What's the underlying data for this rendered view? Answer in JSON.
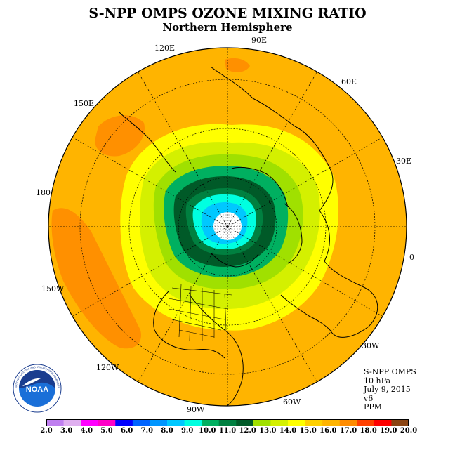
{
  "header": {
    "title": "S-NPP OMPS OZONE MIXING RATIO",
    "subtitle": "Northern Hemisphere"
  },
  "map": {
    "projection": "north-polar-stereographic",
    "longitude_labels": [
      "90E",
      "60E",
      "30E",
      "0",
      "30W",
      "60W",
      "90W",
      "120W",
      "150W",
      "180",
      "150E",
      "120E"
    ],
    "background_color": "#ffb400"
  },
  "info": {
    "instrument": "S-NPP OMPS",
    "level": "10 hPa",
    "date": "July 9, 2015",
    "version": "v6",
    "units": "PPM"
  },
  "logo": {
    "text": "NOAA",
    "ring_text": "NATIONAL OCEANIC AND ATMOSPHERIC ADMINISTRATION · U.S. DEPARTMENT OF COMMERCE",
    "icon": "noaa-seal-icon"
  },
  "colorbar": {
    "ticks": [
      "2.0",
      "3.0",
      "4.0",
      "5.0",
      "6.0",
      "7.0",
      "8.0",
      "9.0",
      "10.0",
      "11.0",
      "12.0",
      "13.0",
      "14.0",
      "15.0",
      "16.0",
      "17.0",
      "18.0",
      "19.0",
      "20.0"
    ],
    "colors": [
      "#c080f0",
      "#e0b0f0",
      "#ff00ff",
      "#ff00c8",
      "#0000ff",
      "#0064ff",
      "#0096ff",
      "#00c8ff",
      "#00ffe0",
      "#00b060",
      "#008040",
      "#005a28",
      "#a0e000",
      "#d4f000",
      "#ffff00",
      "#ffd000",
      "#ffb400",
      "#ff8c00",
      "#ff4000",
      "#ff0000",
      "#8b4513"
    ]
  },
  "ozone_levels": {
    "polar_center": "missing",
    "inner": [
      "#00c8ff",
      "#00ffe0"
    ],
    "dark_ring": [
      "#005a28",
      "#008040"
    ],
    "mid_ring": [
      "#00b060",
      "#a0e000",
      "#d4f000"
    ],
    "outer": [
      "#ffff00",
      "#ffb400"
    ],
    "highs": [
      "#ff8c00"
    ]
  }
}
